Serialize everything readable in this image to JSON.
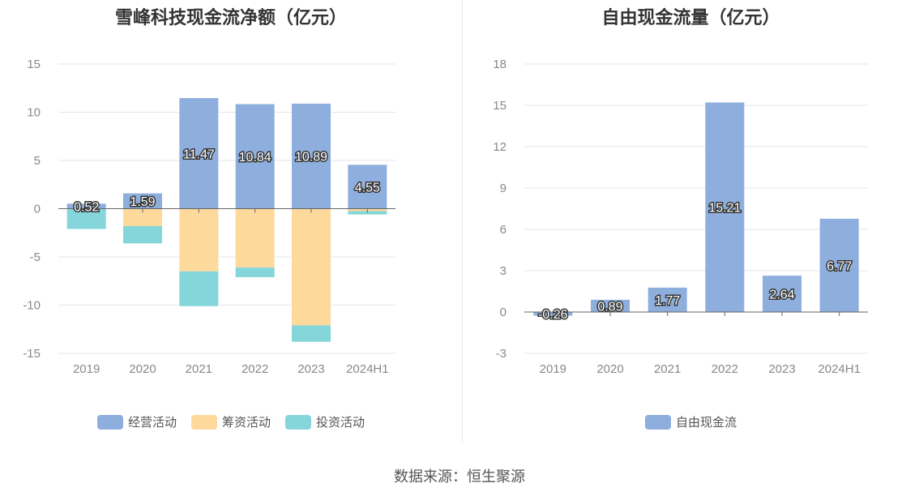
{
  "source": "数据来源：恒生聚源",
  "chart_data": [
    {
      "type": "bar",
      "stacked": true,
      "title": "雪峰科技现金流净额（亿元）",
      "categories": [
        "2019",
        "2020",
        "2021",
        "2022",
        "2023",
        "2024H1"
      ],
      "ylim": [
        -15,
        15
      ],
      "yticks": [
        15,
        10,
        5,
        0,
        -5,
        -10,
        -15
      ],
      "grid": true,
      "legend_position": "bottom",
      "series": [
        {
          "name": "经营活动",
          "color": "#8eaedd",
          "values": [
            0.52,
            1.59,
            11.47,
            10.84,
            10.89,
            4.55
          ],
          "labels": [
            "0.52",
            "1.59",
            "11.47",
            "10.84",
            "10.89",
            "4.55"
          ]
        },
        {
          "name": "筹资活动",
          "color": "#fdd99b",
          "values": [
            0,
            -1.8,
            -6.5,
            -6.1,
            -12.1,
            -0.25
          ]
        },
        {
          "name": "投资活动",
          "color": "#85d6da",
          "values": [
            -2.1,
            -1.8,
            -3.6,
            -1.0,
            -1.7,
            -0.35
          ]
        }
      ]
    },
    {
      "type": "bar",
      "title": "自由现金流量（亿元）",
      "categories": [
        "2019",
        "2020",
        "2021",
        "2022",
        "2023",
        "2024H1"
      ],
      "ylim": [
        -3,
        18
      ],
      "yticks": [
        18,
        15,
        12,
        9,
        6,
        3,
        0,
        -3
      ],
      "grid": true,
      "legend_position": "bottom",
      "series": [
        {
          "name": "自由现金流",
          "color": "#8eaedd",
          "values": [
            -0.26,
            0.89,
            1.77,
            15.21,
            2.64,
            6.77
          ],
          "labels": [
            "-0.26",
            "0.89",
            "1.77",
            "15.21",
            "2.64",
            "6.77"
          ]
        }
      ]
    }
  ]
}
